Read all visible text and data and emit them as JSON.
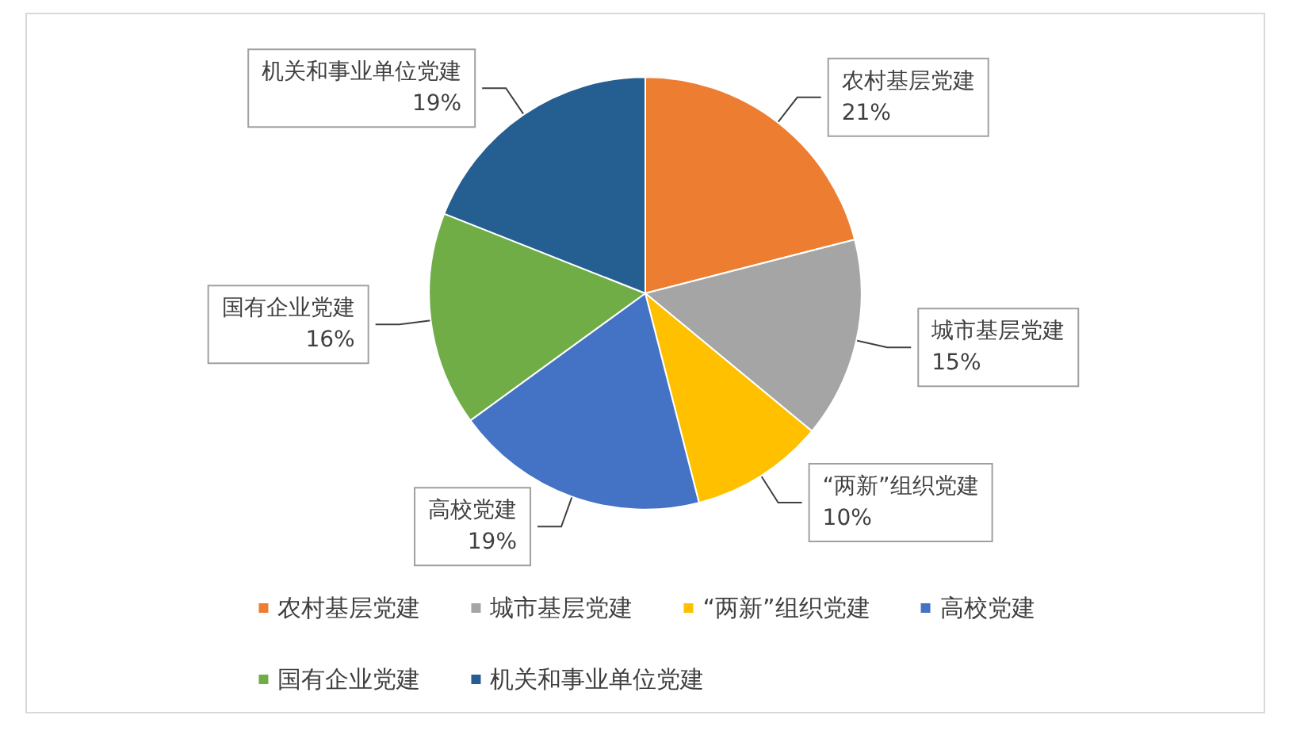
{
  "chart_data": {
    "type": "pie",
    "categories": [
      "农村基层党建",
      "城市基层党建",
      "“两新”组织党建",
      "高校党建",
      "国有企业党建",
      "机关和事业单位党建"
    ],
    "values": [
      21,
      15,
      10,
      19,
      16,
      19
    ],
    "colors": [
      "#ed7d31",
      "#a5a5a5",
      "#ffc000",
      "#4472c4",
      "#70ad47",
      "#255e91"
    ],
    "value_labels": [
      "21%",
      "15%",
      "10%",
      "19%",
      "16%",
      "19%"
    ],
    "legend": "bottom"
  }
}
